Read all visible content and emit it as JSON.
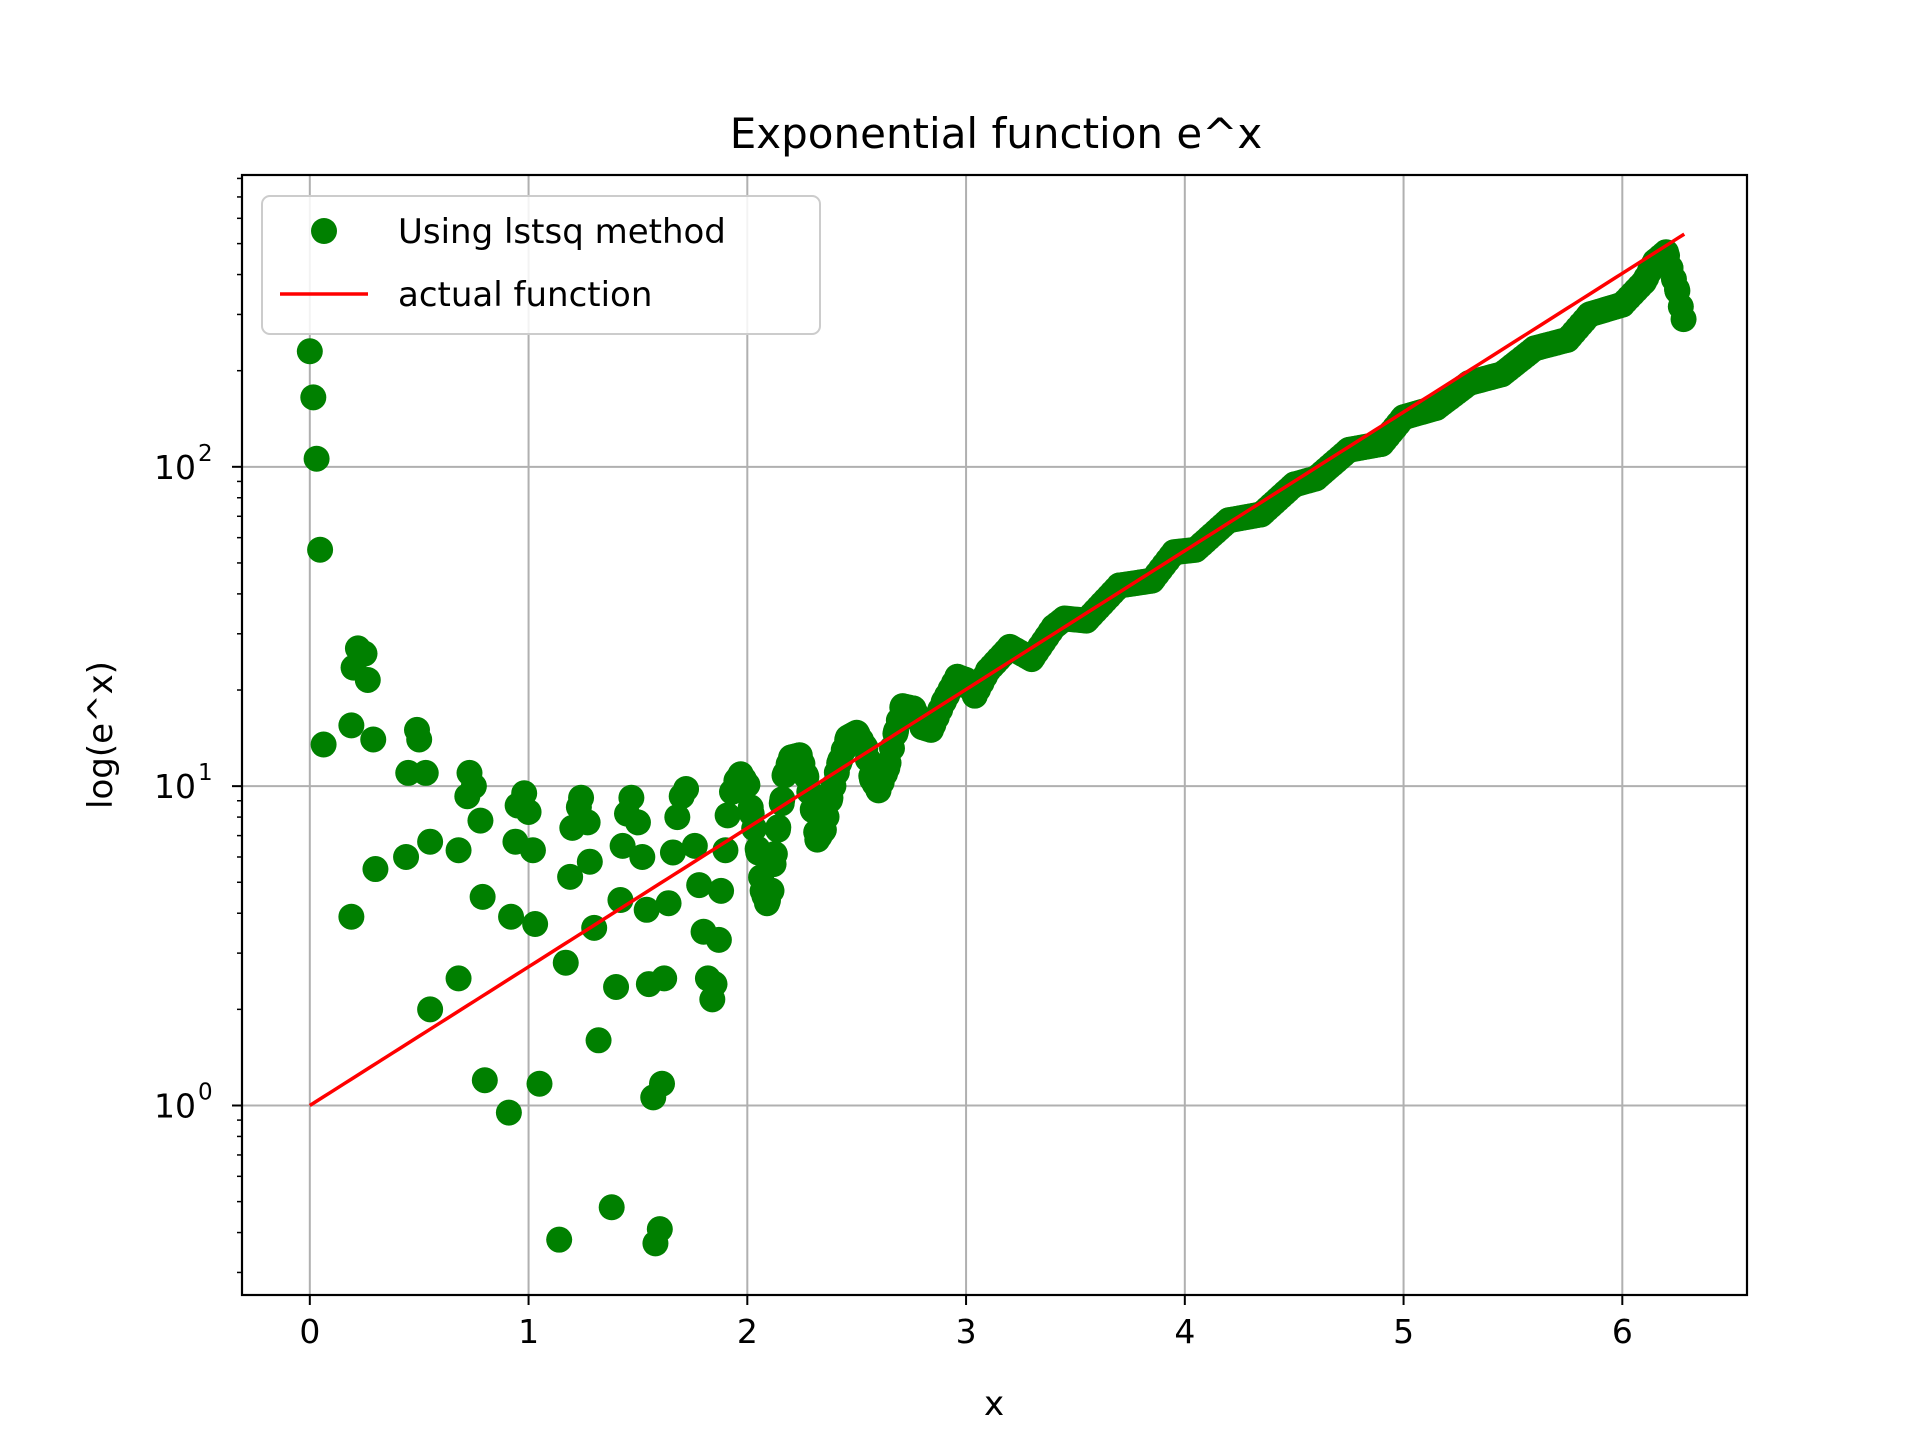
{
  "chart_data": {
    "type": "scatter",
    "title": "Exponential function e^x",
    "xlabel": "x",
    "ylabel": "log(e^x)",
    "xlim": [
      -0.31,
      6.57
    ],
    "ylim": [
      0.255,
      820
    ],
    "yscale": "log",
    "grid": true,
    "legend_position": "top-left",
    "x_ticks": [
      0,
      1,
      2,
      3,
      4,
      5,
      6
    ],
    "x_tick_labels": [
      "0",
      "1",
      "2",
      "3",
      "4",
      "5",
      "6"
    ],
    "y_ticks": [
      1,
      10,
      100
    ],
    "y_tick_labels": [
      {
        "base": "10",
        "exp": "0"
      },
      {
        "base": "10",
        "exp": "1"
      },
      {
        "base": "10",
        "exp": "2"
      }
    ],
    "series": [
      {
        "name": "Using lstsq method",
        "kind": "scatter",
        "color": "#008000",
        "x_domain": [
          0,
          6.2832
        ],
        "num_points": 400,
        "points": [
          [
            0.0,
            230
          ],
          [
            0.016,
            165
          ],
          [
            0.031,
            106
          ],
          [
            0.047,
            55
          ],
          [
            0.063,
            13.5
          ],
          [
            0.19,
            15.5
          ],
          [
            0.2,
            23.5
          ],
          [
            0.22,
            27
          ],
          [
            0.25,
            26
          ],
          [
            0.265,
            21.5
          ],
          [
            0.29,
            14
          ],
          [
            0.3,
            5.5
          ],
          [
            0.19,
            3.9
          ],
          [
            0.44,
            6
          ],
          [
            0.45,
            11
          ],
          [
            0.49,
            15
          ],
          [
            0.5,
            14
          ],
          [
            0.53,
            11
          ],
          [
            0.55,
            6.7
          ],
          [
            0.55,
            2.0
          ],
          [
            0.68,
            6.3
          ],
          [
            0.68,
            2.5
          ],
          [
            0.72,
            9.3
          ],
          [
            0.73,
            11
          ],
          [
            0.75,
            10
          ],
          [
            0.78,
            7.8
          ],
          [
            0.79,
            4.5
          ],
          [
            0.8,
            1.2
          ],
          [
            0.91,
            0.95
          ],
          [
            0.92,
            3.9
          ],
          [
            0.94,
            6.7
          ],
          [
            0.95,
            8.7
          ],
          [
            0.98,
            9.5
          ],
          [
            1.0,
            8.3
          ],
          [
            1.02,
            6.3
          ],
          [
            1.03,
            3.7
          ],
          [
            1.05,
            1.17
          ],
          [
            1.14,
            0.38
          ],
          [
            1.17,
            2.8
          ],
          [
            1.19,
            5.2
          ],
          [
            1.2,
            7.4
          ],
          [
            1.23,
            8.6
          ],
          [
            1.24,
            9.2
          ],
          [
            1.27,
            7.7
          ],
          [
            1.28,
            5.8
          ],
          [
            1.3,
            3.6
          ],
          [
            1.32,
            1.6
          ],
          [
            1.38,
            0.48
          ],
          [
            1.4,
            2.35
          ],
          [
            1.42,
            4.4
          ],
          [
            1.43,
            6.5
          ],
          [
            1.45,
            8.2
          ],
          [
            1.47,
            9.2
          ],
          [
            1.5,
            7.7
          ],
          [
            1.52,
            6.0
          ],
          [
            1.54,
            4.1
          ],
          [
            1.55,
            2.4
          ],
          [
            1.57,
            1.06
          ],
          [
            1.58,
            0.37
          ],
          [
            1.6,
            0.41
          ],
          [
            1.61,
            1.17
          ],
          [
            1.62,
            2.5
          ],
          [
            1.64,
            4.3
          ],
          [
            1.66,
            6.2
          ],
          [
            1.68,
            8.0
          ],
          [
            1.7,
            9.3
          ],
          [
            1.72,
            9.8
          ],
          [
            1.76,
            6.5
          ],
          [
            1.78,
            4.9
          ],
          [
            1.8,
            3.5
          ],
          [
            1.82,
            2.5
          ],
          [
            1.84,
            2.15
          ],
          [
            1.85,
            2.4
          ],
          [
            1.87,
            3.3
          ],
          [
            1.88,
            4.7
          ],
          [
            1.9,
            6.3
          ],
          [
            1.91,
            8.1
          ],
          [
            1.93,
            9.6
          ],
          [
            1.95,
            10.4
          ],
          [
            1.97,
            10.9
          ],
          [
            2.0,
            10.1
          ],
          [
            2.02,
            8.2
          ],
          [
            2.05,
            6.2
          ],
          [
            2.07,
            4.7
          ],
          [
            2.09,
            4.3
          ],
          [
            2.11,
            4.7
          ],
          [
            2.12,
            5.7
          ],
          [
            2.14,
            7.3
          ],
          [
            2.16,
            9.1
          ],
          [
            2.17,
            10.8
          ],
          [
            2.2,
            12.3
          ],
          [
            2.24,
            12.5
          ],
          [
            2.27,
            10.7
          ],
          [
            2.3,
            8.4
          ],
          [
            2.32,
            6.8
          ],
          [
            2.35,
            7.3
          ],
          [
            2.38,
            9.2
          ],
          [
            2.42,
            11.8
          ],
          [
            2.46,
            14.2
          ],
          [
            2.5,
            14.7
          ],
          [
            2.54,
            13.2
          ],
          [
            2.57,
            10.5
          ],
          [
            2.6,
            9.7
          ],
          [
            2.64,
            11.4
          ],
          [
            2.68,
            14.9
          ],
          [
            2.71,
            17.8
          ],
          [
            2.76,
            17.5
          ],
          [
            2.8,
            15.3
          ],
          [
            2.84,
            15.0
          ],
          [
            2.9,
            18.5
          ],
          [
            2.96,
            22.0
          ],
          [
            3.0,
            21.5
          ],
          [
            3.04,
            19.2
          ],
          [
            3.1,
            23.0
          ],
          [
            3.2,
            27.3
          ],
          [
            3.3,
            25.0
          ],
          [
            3.4,
            31.5
          ],
          [
            3.45,
            33.5
          ],
          [
            3.55,
            33.0
          ],
          [
            3.7,
            42.5
          ],
          [
            3.85,
            44.0
          ],
          [
            3.95,
            54.0
          ],
          [
            4.05,
            55.0
          ],
          [
            4.2,
            68.0
          ],
          [
            4.35,
            71.0
          ],
          [
            4.5,
            88.0
          ],
          [
            4.6,
            92.0
          ],
          [
            4.75,
            113.0
          ],
          [
            4.9,
            118.0
          ],
          [
            5.0,
            143.0
          ],
          [
            5.15,
            153.0
          ],
          [
            5.3,
            183.0
          ],
          [
            5.45,
            195.0
          ],
          [
            5.6,
            235.0
          ],
          [
            5.75,
            250.0
          ],
          [
            5.85,
            300.0
          ],
          [
            6.0,
            322.0
          ],
          [
            6.1,
            380.0
          ],
          [
            6.15,
            440.0
          ],
          [
            6.2,
            470.0
          ],
          [
            6.22,
            420.0
          ],
          [
            6.25,
            360.0
          ],
          [
            6.28,
            290.0
          ]
        ]
      },
      {
        "name": "actual function",
        "kind": "line",
        "color": "#ff0000",
        "function": "exp(x)",
        "x_range": [
          0,
          6.2832
        ]
      }
    ]
  }
}
